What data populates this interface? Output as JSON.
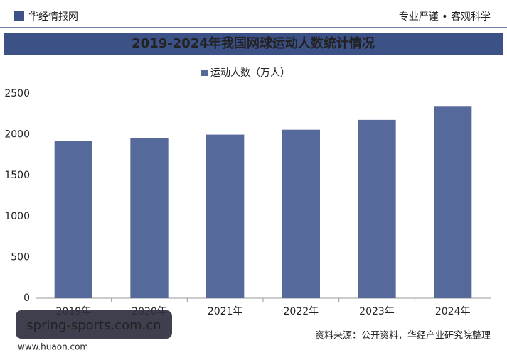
{
  "header": {
    "brand": "华经情报网",
    "slogan": "专业严谨 • 客观科学"
  },
  "chart_data": {
    "type": "bar",
    "title": "2019-2024年我国网球运动人数统计情况",
    "categories": [
      "2019年",
      "2020年",
      "2021年",
      "2022年",
      "2023年",
      "2024年"
    ],
    "series": [
      {
        "name": "运动人数（万人）",
        "color": "#56699b",
        "values": [
          1920,
          1960,
          2000,
          2060,
          2180,
          2350
        ]
      }
    ],
    "ylim": [
      0,
      2500
    ],
    "yticks": [
      0,
      500,
      1000,
      1500,
      2000,
      2500
    ],
    "grid": false,
    "legend": "top"
  },
  "source": "资料来源：公开资料，华经产业研究院整理",
  "overlay": {
    "site": "spring-sports.com.cn",
    "url": "www.huaon.com"
  }
}
